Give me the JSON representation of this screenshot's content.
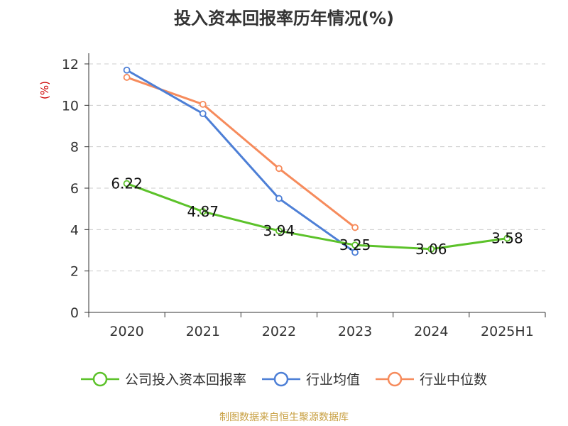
{
  "chart_data": {
    "type": "line",
    "title": "投入资本回报率历年情况(%)",
    "ylabel": "(%)",
    "categories": [
      "2020",
      "2021",
      "2022",
      "2023",
      "2024",
      "2025H1"
    ],
    "ylim": [
      0,
      12
    ],
    "yticks": [
      "0",
      "2",
      "4",
      "6",
      "8",
      "10",
      "12"
    ],
    "grid": true,
    "legend_position": "bottom",
    "series": [
      {
        "name": "公司投入资本回报率",
        "color": "#5cc22a",
        "values": [
          6.22,
          4.87,
          3.94,
          3.25,
          3.06,
          3.58
        ],
        "labels": [
          "6.22",
          "4.87",
          "3.94",
          "3.25",
          "3.06",
          "3.58"
        ]
      },
      {
        "name": "行业均值",
        "color": "#4d7fd6",
        "values": [
          11.7,
          9.6,
          5.5,
          2.9,
          null,
          null
        ]
      },
      {
        "name": "行业中位数",
        "color": "#f68b5c",
        "values": [
          11.35,
          10.05,
          6.95,
          4.1,
          null,
          null
        ]
      }
    ]
  },
  "source": {
    "text": "制图数据来自恒生聚源数据库",
    "color": "#c8a043"
  },
  "ylabel_color": "#cc0000"
}
